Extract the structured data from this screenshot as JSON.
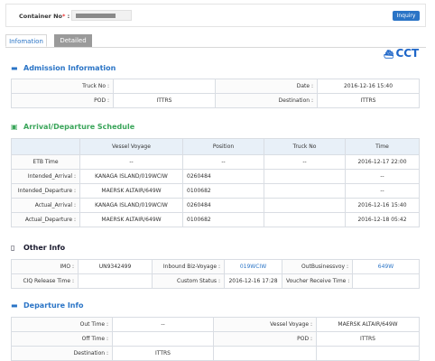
{
  "search": {
    "label": "Container No",
    "required": "*",
    "value_obscured": true,
    "inquiry": "Inquiry"
  },
  "tabs": [
    {
      "label": "Infomation"
    },
    {
      "label": "Detailed"
    }
  ],
  "logo": {
    "text": "CCT",
    "icon": "ship-icon"
  },
  "admission": {
    "title": "Admission Information",
    "truck_label": "Truck No :",
    "truck_value": "",
    "date_label": "Date :",
    "date_value": "2016-12-16 15:40",
    "pod_label": "POD :",
    "pod_value": "ITTRS",
    "dest_label": "Destination :",
    "dest_value": "ITTRS"
  },
  "schedule": {
    "title": "Arrival/Departure Schedule",
    "headers": [
      "",
      "Vessel Voyage",
      "Position",
      "Truck No",
      "Time"
    ],
    "rows": [
      [
        "ETB Time",
        "--",
        "--",
        "--",
        "2016-12-17 22:00"
      ],
      [
        "Intended_Arrival :",
        "KANAGA ISLAND/019WCIW",
        "0260484",
        "",
        "--"
      ],
      [
        "Intended_Departure :",
        "MAERSK ALTAIR/649W",
        "0100682",
        "",
        "--"
      ],
      [
        "Actual_Arrival :",
        "KANAGA ISLAND/019WCIW",
        "0260484",
        "",
        "2016-12-16 15:40"
      ],
      [
        "Actual_Departure :",
        "MAERSK ALTAIR/649W",
        "0100682",
        "",
        "2016-12-18 05:42"
      ]
    ]
  },
  "other": {
    "title": "Other Info",
    "imo_label": "IMO :",
    "imo_value": "UN9342499",
    "inbound_label": "Inbound Biz-Voyage :",
    "inbound_value": "019WCIW",
    "outbiz_label": "OutBusinessvoy :",
    "outbiz_value": "649W",
    "ciq_label": "CIQ Release Time :",
    "ciq_value": "",
    "custom_label": "Custom Status :",
    "custom_value": "2016-12-16 17:28",
    "voucher_label": "Voucher Receive Time :",
    "voucher_value": ""
  },
  "departure": {
    "title": "Departure Info",
    "out_label": "Out Time :",
    "out_value": "--",
    "vessel_label": "Vessel Voyage :",
    "vessel_value": "MAERSK ALTAIR/649W",
    "off_label": "Off Time :",
    "off_value": "",
    "pod_label": "POD :",
    "pod_value": "ITTRS",
    "dest_label": "Destination :",
    "dest_value": "ITTRS"
  },
  "colors": {
    "accent": "#2a74c6",
    "schedule_icon": "#3aa55a",
    "header_bg": "#e8f0f8"
  }
}
